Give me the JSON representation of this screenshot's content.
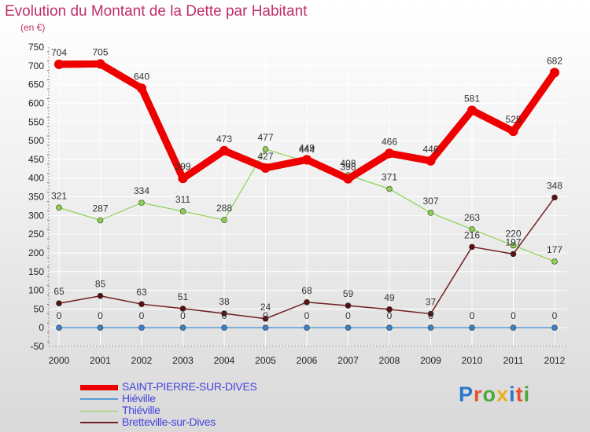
{
  "title": "Evolution du Montant de la Dette par Habitant",
  "subtitle": "(en €)",
  "logo": {
    "text": "Proxiti",
    "letter_colors": [
      "#2a76c8",
      "#e8522a",
      "#4aa83a",
      "#e8b020",
      "#2a76c8",
      "#e8522a",
      "#4aa83a"
    ]
  },
  "chart_data": {
    "type": "line",
    "title": "Evolution du Montant de la Dette par Habitant",
    "subtitle": "(en €)",
    "x": [
      "2000",
      "2001",
      "2002",
      "2003",
      "2004",
      "2005",
      "2006",
      "2007",
      "2008",
      "2009",
      "2010",
      "2011",
      "2012"
    ],
    "ylim": [
      -50,
      750
    ],
    "yticks": [
      -50,
      0,
      50,
      100,
      150,
      200,
      250,
      300,
      350,
      400,
      450,
      500,
      550,
      600,
      650,
      700,
      750
    ],
    "grid": true,
    "legend_position": "bottom-left",
    "series": [
      {
        "name": "SAINT-PIERRE-SUR-DIVES",
        "color": "#ee0000",
        "values": [
          704,
          705,
          640,
          399,
          473,
          427,
          449,
          398,
          466,
          446,
          581,
          525,
          682
        ],
        "labels": [
          "704",
          "705",
          "640",
          "399",
          "473",
          "427",
          "449",
          "398",
          "466",
          "446",
          "581",
          "525",
          "682"
        ]
      },
      {
        "name": "Hiéville",
        "color": "#5b9bd5",
        "values": [
          0,
          0,
          0,
          0,
          0,
          0,
          0,
          0,
          0,
          0,
          0,
          0,
          0
        ],
        "labels": [
          "0",
          "0",
          "0",
          "0",
          "0",
          "0",
          "0",
          "0",
          "0",
          "0",
          "0",
          "0",
          "0"
        ]
      },
      {
        "name": "Thiéville",
        "color": "#8ed14e",
        "values": [
          321,
          287,
          334,
          311,
          288,
          477,
          444,
          408,
          371,
          307,
          263,
          220,
          177
        ],
        "labels": [
          "321",
          "287",
          "334",
          "311",
          "288",
          "477",
          "444",
          "408",
          "371",
          "307",
          "263",
          "220",
          "177"
        ]
      },
      {
        "name": "Bretteville-sur-Dives",
        "color": "#702020",
        "values": [
          65,
          85,
          63,
          51,
          38,
          24,
          68,
          59,
          49,
          37,
          216,
          197,
          348
        ],
        "labels": [
          "65",
          "85",
          "63",
          "51",
          "38",
          "24",
          "68",
          "59",
          "49",
          "37",
          "216",
          "197",
          "348"
        ]
      }
    ]
  }
}
